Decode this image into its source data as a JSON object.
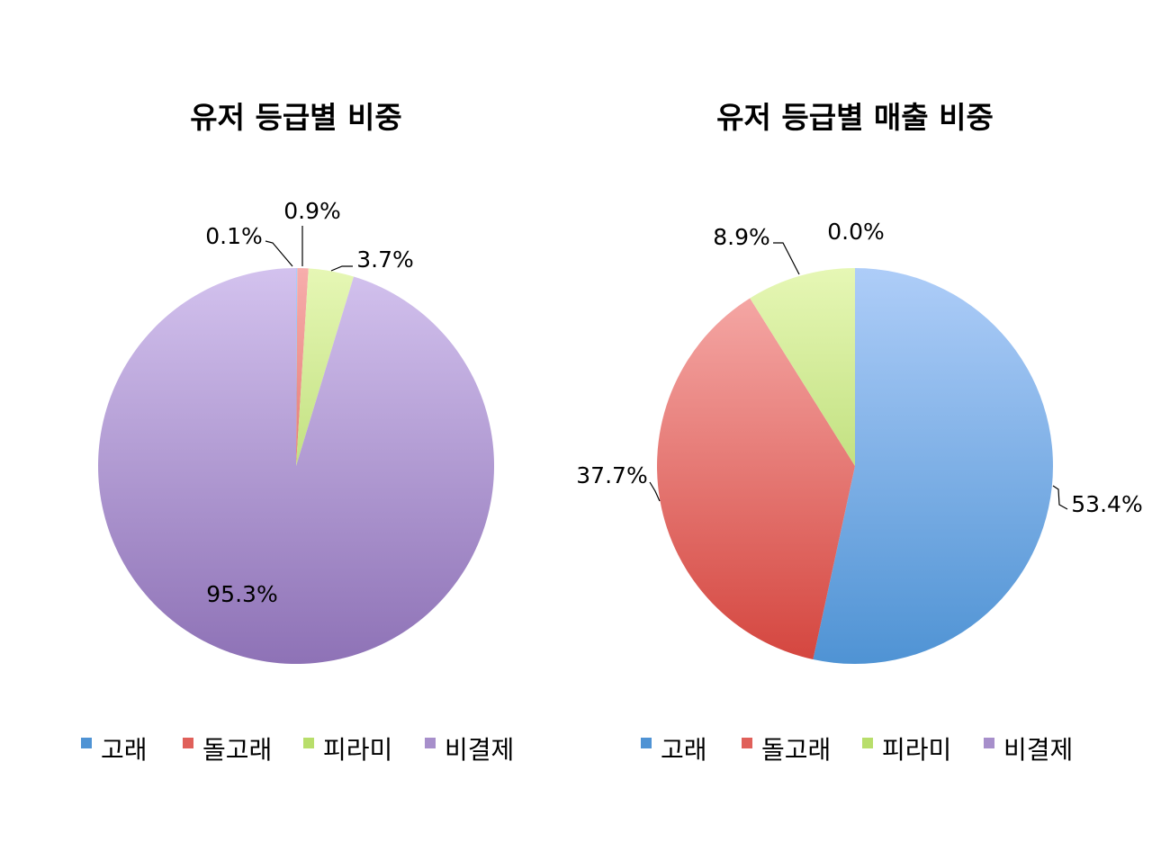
{
  "chart_data": [
    {
      "type": "pie",
      "title": "유저 등급별 비중",
      "categories": [
        "고래",
        "돌고래",
        "피라미",
        "비결제"
      ],
      "values": [
        0.1,
        0.9,
        3.7,
        95.3
      ],
      "value_labels": [
        "0.1%",
        "0.9%",
        "3.7%",
        "95.3%"
      ],
      "start": "12 o'clock",
      "direction": "clockwise",
      "legend_position": "bottom"
    },
    {
      "type": "pie",
      "title": "유저 등급별 매출 비중",
      "categories": [
        "고래",
        "돌고래",
        "피라미",
        "비결제"
      ],
      "values": [
        53.4,
        37.7,
        8.9,
        0.0
      ],
      "value_labels": [
        "53.4%",
        "37.7%",
        "8.9%",
        "0.0%"
      ],
      "start": "12 o'clock",
      "direction": "clockwise",
      "legend_position": "bottom"
    }
  ],
  "colors": {
    "고래": [
      "#aecdf8",
      "#4f93d4"
    ],
    "돌고래": [
      "#f7aeac",
      "#d4453e"
    ],
    "피라미": [
      "#e6f7b5",
      "#9fcb4e"
    ],
    "비결제": [
      "#d3c2ee",
      "#8e72b6"
    ],
    "legend": [
      "#4f93d4",
      "#e0605a",
      "#b8de6b",
      "#a78fcb"
    ]
  }
}
